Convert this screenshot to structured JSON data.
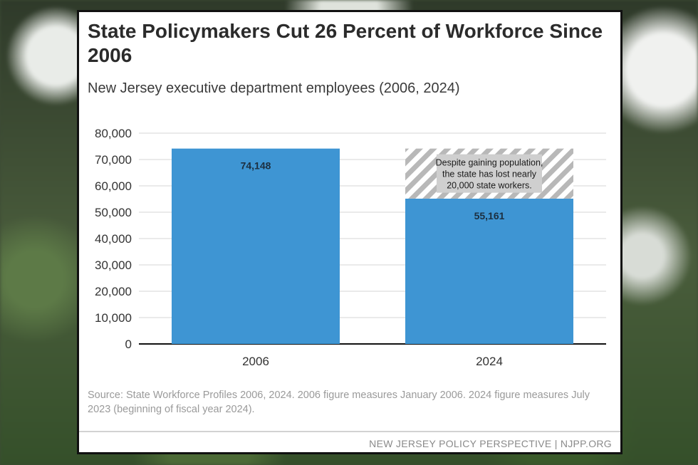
{
  "title": "State Policymakers Cut 26 Percent of Workforce Since 2006",
  "subtitle": "New Jersey executive department employees (2006, 2024)",
  "source": "Source: State Workforce Profiles 2006, 2024. 2006 figure measures January 2006. 2024 figure measures July 2023 (beginning of fiscal year 2024).",
  "footer": "NEW JERSEY POLICY PERSPECTIVE | NJPP.ORG",
  "chart_data": {
    "type": "bar",
    "categories": [
      "2006",
      "2024"
    ],
    "values": [
      74148,
      55161
    ],
    "value_labels": [
      "74,148",
      "55,161"
    ],
    "yticks": [
      "0",
      "10,000",
      "20,000",
      "30,000",
      "40,000",
      "50,000",
      "60,000",
      "70,000",
      "80,000"
    ],
    "ylim": [
      0,
      80000
    ],
    "grid": true,
    "bar_color": "#3e95d3",
    "annotation": {
      "text_lines": [
        "Despite gaining population,",
        "the state has lost nearly",
        "20,000 state workers."
      ],
      "category": "2024",
      "from": 55161,
      "to": 74148
    }
  }
}
